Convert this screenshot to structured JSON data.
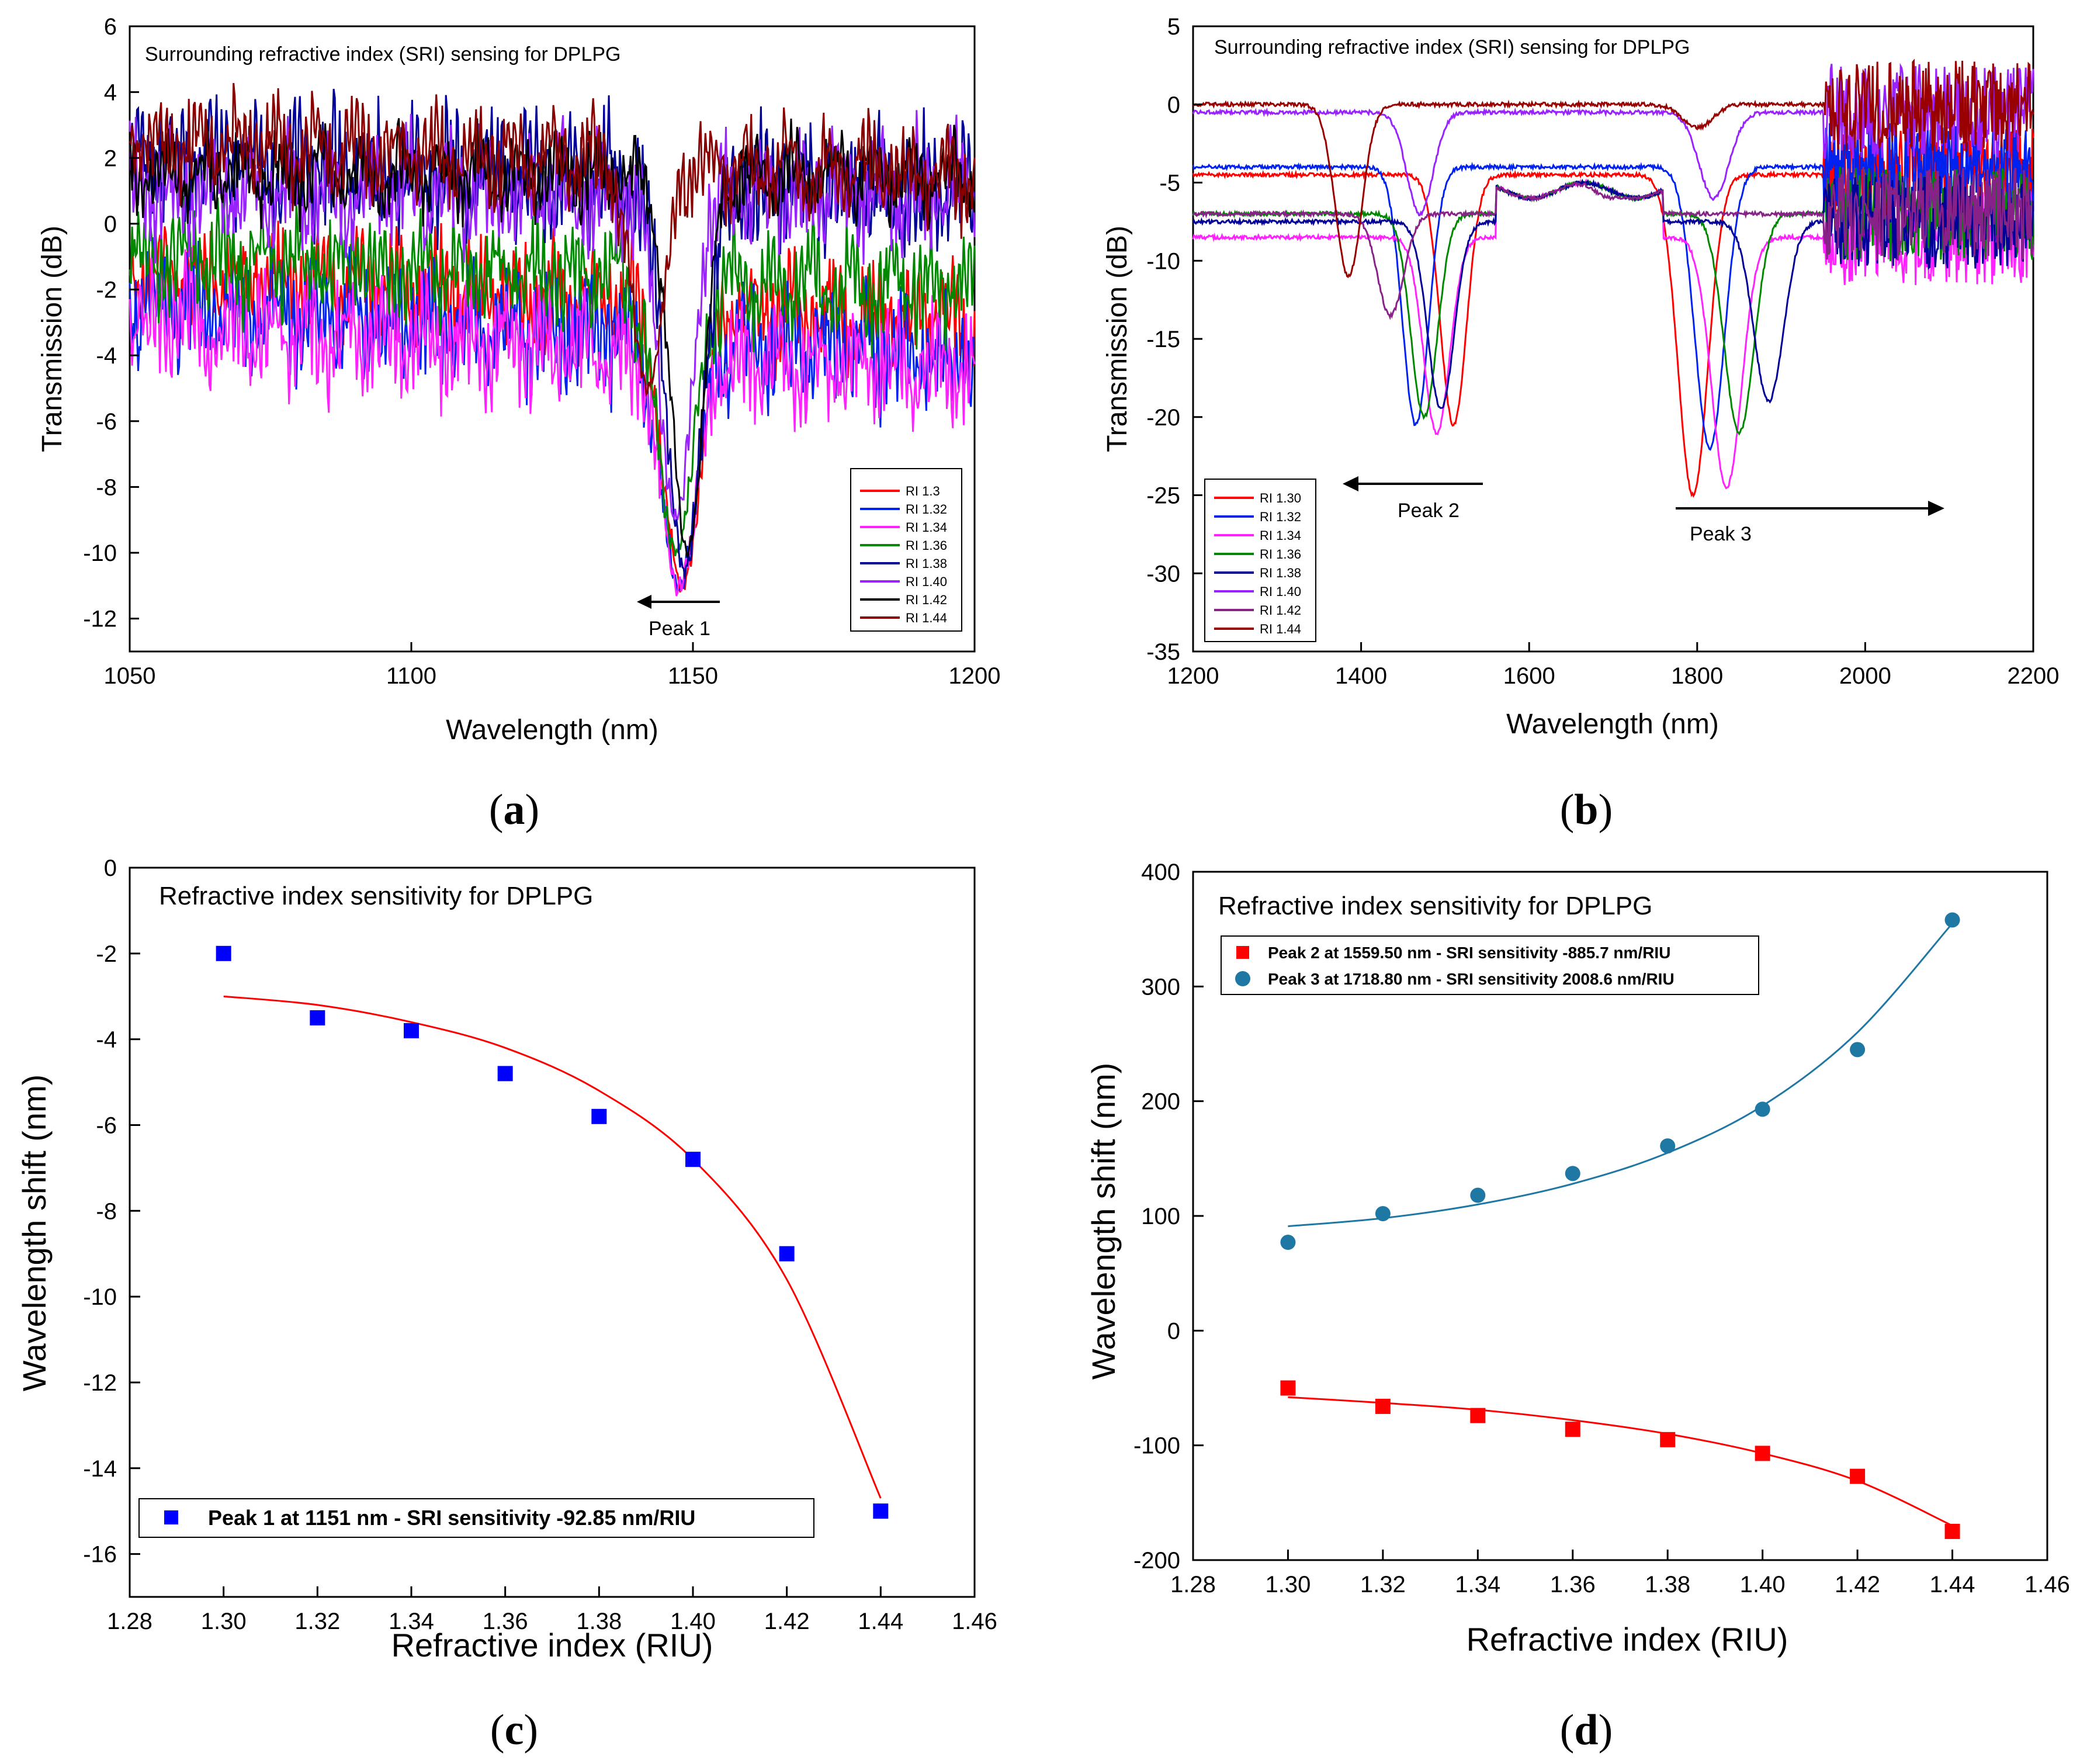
{
  "chart_data": [
    {
      "id": "a",
      "type": "line",
      "panel_label": "(a)",
      "title": "Surrounding refractive index (SRI) sensing for DPLPG",
      "xlabel": "Wavelength (nm)",
      "ylabel": "Transmission (dB)",
      "xlim": [
        1050,
        1200
      ],
      "ylim": [
        -13,
        6
      ],
      "xticks": [
        1050,
        1100,
        1150,
        1200
      ],
      "yticks": [
        6,
        4,
        2,
        0,
        -2,
        -4,
        -6,
        -8,
        -10,
        -12
      ],
      "legend_position": "bottom-right",
      "annotations": [
        {
          "text": "Peak 1",
          "arrow": "left",
          "x_from": 1155,
          "x_to": 1145,
          "y": -11.3
        }
      ],
      "series": [
        {
          "name": "RI 1.3",
          "color": "#ff0000",
          "baseline_start": -1.5,
          "baseline_end": -3.0,
          "dip_center": 1148.0,
          "dip_depth": -11.0,
          "dip_width": 4.5,
          "noise": 0.8
        },
        {
          "name": "RI 1.32",
          "color": "#0022ee",
          "baseline_start": -2.5,
          "baseline_end": -4.0,
          "dip_center": 1147.5,
          "dip_depth": -11.0,
          "dip_width": 4.5,
          "noise": 0.9
        },
        {
          "name": "RI 1.34",
          "color": "#ff22ff",
          "baseline_start": -3.0,
          "baseline_end": -4.5,
          "dip_center": 1147.5,
          "dip_depth": -11.0,
          "dip_width": 4.5,
          "noise": 0.9
        },
        {
          "name": "RI 1.36",
          "color": "#008800",
          "baseline_start": -1.0,
          "baseline_end": -2.0,
          "dip_center": 1147.0,
          "dip_depth": -10.0,
          "dip_width": 4.5,
          "noise": 0.8
        },
        {
          "name": "RI 1.38",
          "color": "#000099",
          "baseline_start": 2.0,
          "baseline_end": 1.0,
          "dip_center": 1148.5,
          "dip_depth": -10.5,
          "dip_width": 4.5,
          "noise": 1.0
        },
        {
          "name": "RI 1.40",
          "color": "#9922ff",
          "baseline_start": 1.0,
          "baseline_end": 1.0,
          "dip_center": 1147.0,
          "dip_depth": -9.0,
          "dip_width": 4.0,
          "noise": 0.9
        },
        {
          "name": "RI 1.42",
          "color": "#000000",
          "baseline_start": 1.5,
          "baseline_end": 1.5,
          "dip_center": 1149.0,
          "dip_depth": -10.0,
          "dip_width": 4.0,
          "noise": 0.6
        },
        {
          "name": "RI 1.44",
          "color": "#880000",
          "baseline_start": 2.5,
          "baseline_end": 1.5,
          "dip_center": 1142.0,
          "dip_depth": -5.0,
          "dip_width": 4.0,
          "noise": 0.7
        }
      ]
    },
    {
      "id": "b",
      "type": "line",
      "panel_label": "(b)",
      "title": "Surrounding refractive index (SRI) sensing for DPLPG",
      "xlabel": "Wavelength (nm)",
      "ylabel": "Transmission (dB)",
      "xlim": [
        1200,
        2200
      ],
      "ylim": [
        -35,
        5
      ],
      "xticks": [
        1200,
        1400,
        1600,
        1800,
        2000,
        2200
      ],
      "yticks": [
        5,
        0,
        -5,
        -10,
        -15,
        -20,
        -25,
        -30,
        -35
      ],
      "legend_position": "bottom-left",
      "annotations": [
        {
          "text": "Peak 2",
          "arrow": "left",
          "x_from": 1550,
          "x_to": 1370,
          "y": -24.5
        },
        {
          "text": "Peak 3",
          "arrow": "right",
          "x_from": 1770,
          "x_to": 2100,
          "y": -26.5
        }
      ],
      "series": [
        {
          "name": "RI 1.30",
          "color": "#ff0000",
          "baseline": -4.5,
          "dip2_center": 1510,
          "dip2_depth": -20.5,
          "dip3_center": 1795,
          "dip3_depth": -25.0
        },
        {
          "name": "RI 1.32",
          "color": "#0022ee",
          "baseline": -4.0,
          "dip2_center": 1465,
          "dip2_depth": -20.5,
          "dip3_center": 1815,
          "dip3_depth": -22.0
        },
        {
          "name": "RI 1.34",
          "color": "#ff22ff",
          "baseline": -8.5,
          "dip2_center": 1490,
          "dip2_depth": -21.0,
          "dip3_center": 1835,
          "dip3_depth": -24.5
        },
        {
          "name": "RI 1.36",
          "color": "#008800",
          "baseline": -7.0,
          "dip2_center": 1475,
          "dip2_depth": -20.0,
          "dip3_center": 1850,
          "dip3_depth": -21.0
        },
        {
          "name": "RI 1.38",
          "color": "#000099",
          "baseline": -7.5,
          "dip2_center": 1495,
          "dip2_depth": -19.5,
          "dip3_center": 1885,
          "dip3_depth": -19.0
        },
        {
          "name": "RI 1.40",
          "color": "#9922ff",
          "baseline": -0.5,
          "dip2_center": 1470,
          "dip2_depth": -7.0,
          "dip3_center": 1820,
          "dip3_depth": -6.0
        },
        {
          "name": "RI 1.42",
          "color": "#882288",
          "baseline": -7.0,
          "dip2_center": 1435,
          "dip2_depth": -13.5,
          "dip3_center": 1700,
          "dip3_depth": -6.0
        },
        {
          "name": "RI 1.44",
          "color": "#990000",
          "baseline": 0.0,
          "dip2_center": 1385,
          "dip2_depth": -11.0,
          "dip3_center": 1800,
          "dip3_depth": -1.5
        }
      ]
    },
    {
      "id": "c",
      "type": "scatter",
      "panel_label": "(c)",
      "title": "Refractive index sensitivity for DPLPG",
      "xlabel": "Refractive index (RIU)",
      "ylabel": "Wavelength shift (nm)",
      "xlim": [
        1.28,
        1.46
      ],
      "ylim": [
        -17,
        0
      ],
      "xticks": [
        "1.28",
        "1.30",
        "1.32",
        "1.34",
        "1.36",
        "1.38",
        "1.40",
        "1.42",
        "1.44",
        "1.46"
      ],
      "yticks": [
        0,
        -2,
        -4,
        -6,
        -8,
        -10,
        -12,
        -14,
        -16
      ],
      "legend_position": "bottom-left",
      "series": [
        {
          "name": "Peak 1 at 1151 nm - SRI sensitivity -92.85 nm/RIU",
          "marker": "square",
          "color": "#0000ff",
          "x": [
            1.3,
            1.32,
            1.34,
            1.36,
            1.38,
            1.4,
            1.42,
            1.44
          ],
          "y": [
            -2.0,
            -3.5,
            -3.8,
            -4.8,
            -5.8,
            -6.8,
            -9.0,
            -15.0
          ],
          "fit": {
            "color": "#ff0000",
            "x": [
              1.3,
              1.32,
              1.34,
              1.36,
              1.38,
              1.4,
              1.42,
              1.44
            ],
            "y": [
              -3.0,
              -3.2,
              -3.6,
              -4.2,
              -5.2,
              -6.8,
              -9.6,
              -14.7
            ]
          }
        }
      ]
    },
    {
      "id": "d",
      "type": "scatter",
      "panel_label": "(d)",
      "title": "Refractive index sensitivity for DPLPG",
      "xlabel": "Refractive index (RIU)",
      "ylabel": "Wavelength shift (nm)",
      "xlim": [
        1.28,
        1.46
      ],
      "ylim": [
        -200,
        400
      ],
      "xticks": [
        "1.28",
        "1.30",
        "1.32",
        "1.34",
        "1.36",
        "1.38",
        "1.40",
        "1.42",
        "1.44",
        "1.46"
      ],
      "yticks": [
        400,
        300,
        200,
        100,
        0,
        -100,
        -200
      ],
      "legend_position": "top-left",
      "series": [
        {
          "name": "Peak 2 at 1559.50 nm - SRI sensitivity -885.7 nm/RIU",
          "marker": "square",
          "color": "#ff0000",
          "x": [
            1.3,
            1.32,
            1.34,
            1.36,
            1.38,
            1.4,
            1.42,
            1.44
          ],
          "y": [
            -50,
            -66,
            -74,
            -86,
            -95,
            -107,
            -127,
            -175
          ],
          "fit": {
            "color": "#ff0000",
            "x": [
              1.3,
              1.32,
              1.34,
              1.36,
              1.38,
              1.4,
              1.42,
              1.44
            ],
            "y": [
              -58,
              -63,
              -69,
              -78,
              -90,
              -107,
              -131,
              -170
            ]
          }
        },
        {
          "name": "Peak 3 at 1718.80 nm - SRI sensitivity 2008.6 nm/RIU",
          "marker": "circle",
          "color": "#1f77a4",
          "x": [
            1.3,
            1.32,
            1.34,
            1.36,
            1.38,
            1.4,
            1.42,
            1.44
          ],
          "y": [
            77,
            102,
            118,
            137,
            161,
            193,
            245,
            358
          ],
          "fit": {
            "color": "#1f77a4",
            "x": [
              1.3,
              1.32,
              1.34,
              1.36,
              1.38,
              1.4,
              1.42,
              1.44
            ],
            "y": [
              91,
              98,
              110,
              128,
              155,
              196,
              260,
              355
            ]
          }
        }
      ]
    }
  ]
}
